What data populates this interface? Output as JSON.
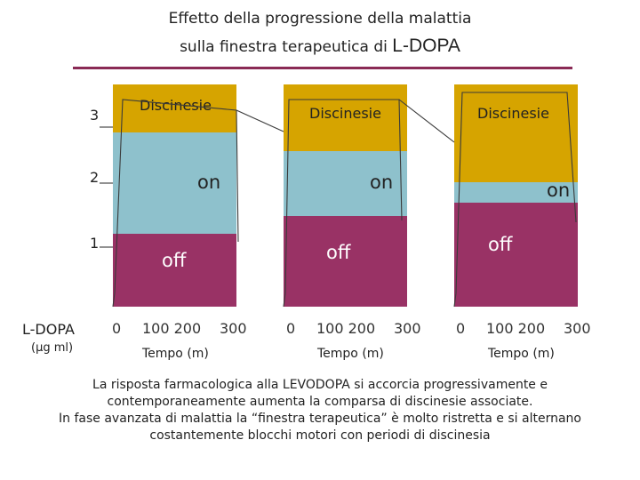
{
  "title": {
    "line1": "Effetto della progressione della malattia",
    "line2_prefix": "sulla finestra terapeutica di ",
    "line2_drug": "L-DOPA"
  },
  "y_axis": {
    "ticks": [
      "3",
      "2",
      "1"
    ],
    "label": "L-DOPA",
    "unit": "(μg ml)"
  },
  "panels": [
    {
      "dysk_label": "Discinesie",
      "on_label": "on",
      "off_label": "off",
      "x_ticks": [
        "0",
        "100 200",
        "300"
      ],
      "x_title": "Tempo (m)"
    },
    {
      "dysk_label": "Discinesie",
      "on_label": "on",
      "off_label": "off",
      "x_ticks": [
        "0",
        "100 200",
        "300"
      ],
      "x_title": "Tempo (m)"
    },
    {
      "dysk_label": "Discinesie",
      "on_label": "on",
      "off_label": "off",
      "x_ticks": [
        "0",
        "100 200",
        "300"
      ],
      "x_title": "Tempo (m)"
    }
  ],
  "caption": {
    "line1": "La risposta farmacologica alla LEVODOPA si accorcia progressivamente e",
    "line2": "contemporaneamente aumenta la comparsa di discinesie associate.",
    "line3": "In fase avanzata di malattia la “finestra terapeutica” è molto ristretta e si alternano",
    "line4": "costantemente blocchi motori con periodi di discinesia"
  },
  "colors": {
    "dyskinesia": "#d6a400",
    "on": "#8ec1cc",
    "off": "#993265",
    "rule": "#8a2a55"
  }
}
